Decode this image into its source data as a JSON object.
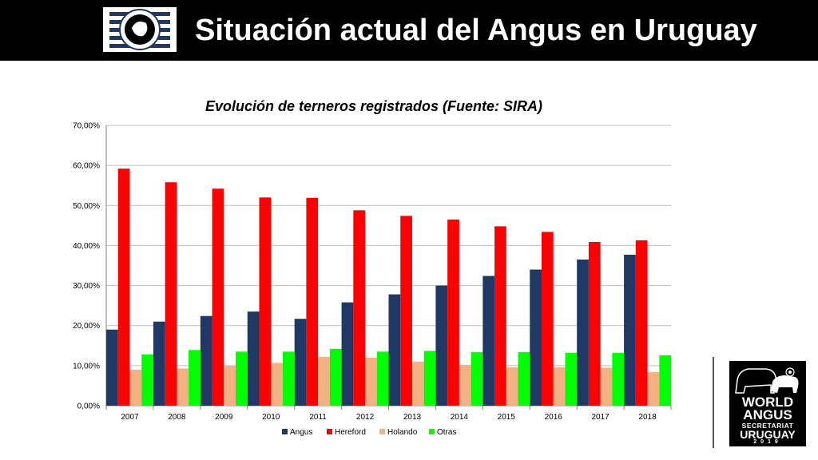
{
  "header": {
    "title": "Situación actual del Angus en Uruguay",
    "logo_icon": "angus-society-emblem-icon"
  },
  "brand": {
    "line1": "WORLD",
    "line2": "ANGUS",
    "line3": "SECRETARIAT",
    "line4": "URUGUAY",
    "line5": "2019",
    "icon": "cattle-silhouette-icon"
  },
  "colors": {
    "header_bg": "#000000",
    "Angus": "#1F3864",
    "Hereford": "#FF0000",
    "Holando": "#F4B183",
    "Otras": "#00FF00"
  },
  "chart_data": {
    "type": "bar",
    "title": "Evolución de terneros registrados (Fuente: SIRA)",
    "xlabel": "",
    "ylabel": "",
    "categories": [
      "2007",
      "2008",
      "2009",
      "2010",
      "2011",
      "2012",
      "2013",
      "2014",
      "2015",
      "2016",
      "2017",
      "2018"
    ],
    "series": [
      {
        "name": "Angus",
        "values": [
          19.0,
          21.0,
          22.4,
          23.5,
          21.7,
          25.8,
          27.8,
          30.0,
          32.4,
          34.0,
          36.5,
          37.7
        ]
      },
      {
        "name": "Hereford",
        "values": [
          59.2,
          55.8,
          54.2,
          52.0,
          51.9,
          48.8,
          47.4,
          46.5,
          44.8,
          43.4,
          40.9,
          41.3
        ]
      },
      {
        "name": "Holando",
        "values": [
          9.0,
          9.3,
          9.9,
          10.7,
          12.2,
          12.0,
          11.0,
          10.2,
          9.6,
          9.6,
          9.5,
          8.4
        ]
      },
      {
        "name": "Otras",
        "values": [
          12.8,
          13.9,
          13.5,
          13.5,
          14.2,
          13.5,
          13.7,
          13.4,
          13.4,
          13.2,
          13.2,
          12.6
        ]
      }
    ],
    "ylim": [
      0,
      70
    ],
    "yticks": [
      "0,00%",
      "10,00%",
      "20,00%",
      "30,00%",
      "40,00%",
      "50,00%",
      "60,00%",
      "70,00%"
    ],
    "grid": true,
    "legend": "bottom"
  }
}
